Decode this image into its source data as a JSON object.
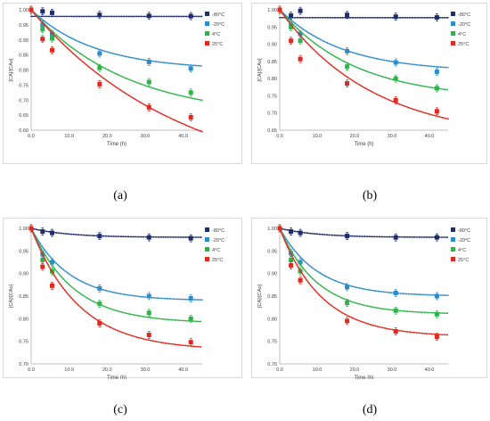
{
  "figure": {
    "captions": [
      "(a)",
      "(b)",
      "(c)",
      "(d)"
    ]
  },
  "colors": {
    "-80°C": "#1f2d6b",
    "-20°C": "#2e8bc9",
    "4°C": "#2db34a",
    "25°C": "#e0281e"
  },
  "chart_data": [
    {
      "type": "scatter",
      "title": "",
      "xlabel": "Time (h)",
      "ylabel": "[CA]/[CAo]",
      "xlim": [
        0,
        45
      ],
      "ylim": [
        0.6,
        1.0
      ],
      "xticks": [
        "0.0",
        "10.0",
        "20.0",
        "30.0",
        "40.0"
      ],
      "yticks": [
        "0.60",
        "0.65",
        "0.70",
        "0.75",
        "0.80",
        "0.85",
        "0.90",
        "0.95",
        "1.00"
      ],
      "grid": false,
      "legend": "right",
      "fit": "dotted trend line per series",
      "x": [
        0,
        3,
        5.5,
        18,
        31,
        42
      ],
      "series": [
        {
          "name": "-80°C",
          "values": [
            1.0,
            0.995,
            0.99,
            0.983,
            0.98,
            0.979
          ],
          "fit": [
            0.0002,
            0.05,
            0.978
          ]
        },
        {
          "name": "-20°C",
          "values": [
            1.0,
            0.95,
            0.92,
            0.855,
            0.827,
            0.805
          ],
          "fit": [
            0.2,
            0.06,
            0.8
          ]
        },
        {
          "name": "4°C",
          "values": [
            1.0,
            0.935,
            0.905,
            0.807,
            0.76,
            0.725
          ],
          "fit": [
            0.36,
            0.04,
            0.64
          ]
        },
        {
          "name": "25°C",
          "values": [
            1.0,
            0.903,
            0.866,
            0.753,
            0.676,
            0.643
          ],
          "fit": [
            0.6,
            0.025,
            0.4
          ]
        }
      ]
    },
    {
      "type": "scatter",
      "title": "",
      "xlabel": "Time (h)",
      "ylabel": "[CA]/[CAo]",
      "xlim": [
        0,
        45
      ],
      "ylim": [
        0.65,
        1.0
      ],
      "xticks": [
        "0.0",
        "10.0",
        "20.0",
        "30.0",
        "40.0"
      ],
      "yticks": [
        "0.65",
        "0.70",
        "0.75",
        "0.80",
        "0.85",
        "0.90",
        "0.95",
        "1.00"
      ],
      "grid": false,
      "legend": "right",
      "fit": "dotted trend line per series",
      "x": [
        0,
        3,
        5.5,
        18,
        31,
        42
      ],
      "series": [
        {
          "name": "-80°C",
          "values": [
            1.0,
            0.983,
            0.997,
            0.985,
            0.98,
            0.978
          ],
          "fit": [
            0.0003,
            0.05,
            0.977
          ]
        },
        {
          "name": "-20°C",
          "values": [
            1.0,
            0.955,
            0.93,
            0.88,
            0.847,
            0.82
          ],
          "fit": [
            0.18,
            0.06,
            0.82
          ]
        },
        {
          "name": "4°C",
          "values": [
            1.0,
            0.95,
            0.91,
            0.835,
            0.8,
            0.772
          ],
          "fit": [
            0.26,
            0.05,
            0.74
          ]
        },
        {
          "name": "25°C",
          "values": [
            1.0,
            0.91,
            0.857,
            0.786,
            0.737,
            0.705
          ],
          "fit": [
            0.38,
            0.04,
            0.62
          ]
        }
      ]
    },
    {
      "type": "scatter",
      "title": "",
      "xlabel": "Time (h)",
      "ylabel": "[CA]/[CAo]",
      "xlim": [
        0,
        45
      ],
      "ylim": [
        0.7,
        1.0
      ],
      "xticks": [
        "0.0",
        "10.0",
        "20.0",
        "30.0",
        "40.0"
      ],
      "yticks": [
        "0.70",
        "0.75",
        "0.80",
        "0.85",
        "0.90",
        "0.95",
        "1.00"
      ],
      "grid": false,
      "legend": "right",
      "fit": "dotted trend line per series",
      "x": [
        0,
        3,
        5.5,
        18,
        31,
        42
      ],
      "series": [
        {
          "name": "-80°C",
          "values": [
            1.0,
            0.993,
            0.99,
            0.983,
            0.98,
            0.978
          ],
          "fit": [
            0.02,
            0.1,
            0.98
          ]
        },
        {
          "name": "-20°C",
          "values": [
            1.0,
            0.943,
            0.925,
            0.867,
            0.85,
            0.845
          ],
          "fit": [
            0.16,
            0.1,
            0.84
          ]
        },
        {
          "name": "4°C",
          "values": [
            1.0,
            0.93,
            0.905,
            0.833,
            0.813,
            0.8
          ],
          "fit": [
            0.21,
            0.09,
            0.79
          ]
        },
        {
          "name": "25°C",
          "values": [
            1.0,
            0.915,
            0.873,
            0.79,
            0.764,
            0.748
          ],
          "fit": [
            0.27,
            0.08,
            0.73
          ]
        }
      ]
    },
    {
      "type": "scatter",
      "title": "",
      "xlabel": "Time (h)",
      "ylabel": "[CA]/[CAo]",
      "xlim": [
        0,
        45
      ],
      "ylim": [
        0.7,
        1.0
      ],
      "xticks": [
        "0.0",
        "10.0",
        "20.0",
        "30.0",
        "40.0"
      ],
      "yticks": [
        "0.70",
        "0.75",
        "0.80",
        "0.85",
        "0.90",
        "0.95",
        "1.00"
      ],
      "grid": false,
      "legend": "right",
      "fit": "dotted trend line per series",
      "x": [
        0,
        3,
        5.5,
        18,
        31,
        42
      ],
      "series": [
        {
          "name": "-80°C",
          "values": [
            1.0,
            0.993,
            0.99,
            0.983,
            0.98,
            0.98
          ],
          "fit": [
            0.02,
            0.1,
            0.98
          ]
        },
        {
          "name": "-20°C",
          "values": [
            1.0,
            0.945,
            0.925,
            0.87,
            0.857,
            0.85
          ],
          "fit": [
            0.15,
            0.1,
            0.85
          ]
        },
        {
          "name": "4°C",
          "values": [
            1.0,
            0.93,
            0.905,
            0.835,
            0.818,
            0.81
          ],
          "fit": [
            0.19,
            0.1,
            0.81
          ]
        },
        {
          "name": "25°C",
          "values": [
            1.0,
            0.918,
            0.885,
            0.795,
            0.772,
            0.76
          ],
          "fit": [
            0.24,
            0.09,
            0.76
          ]
        }
      ]
    }
  ]
}
